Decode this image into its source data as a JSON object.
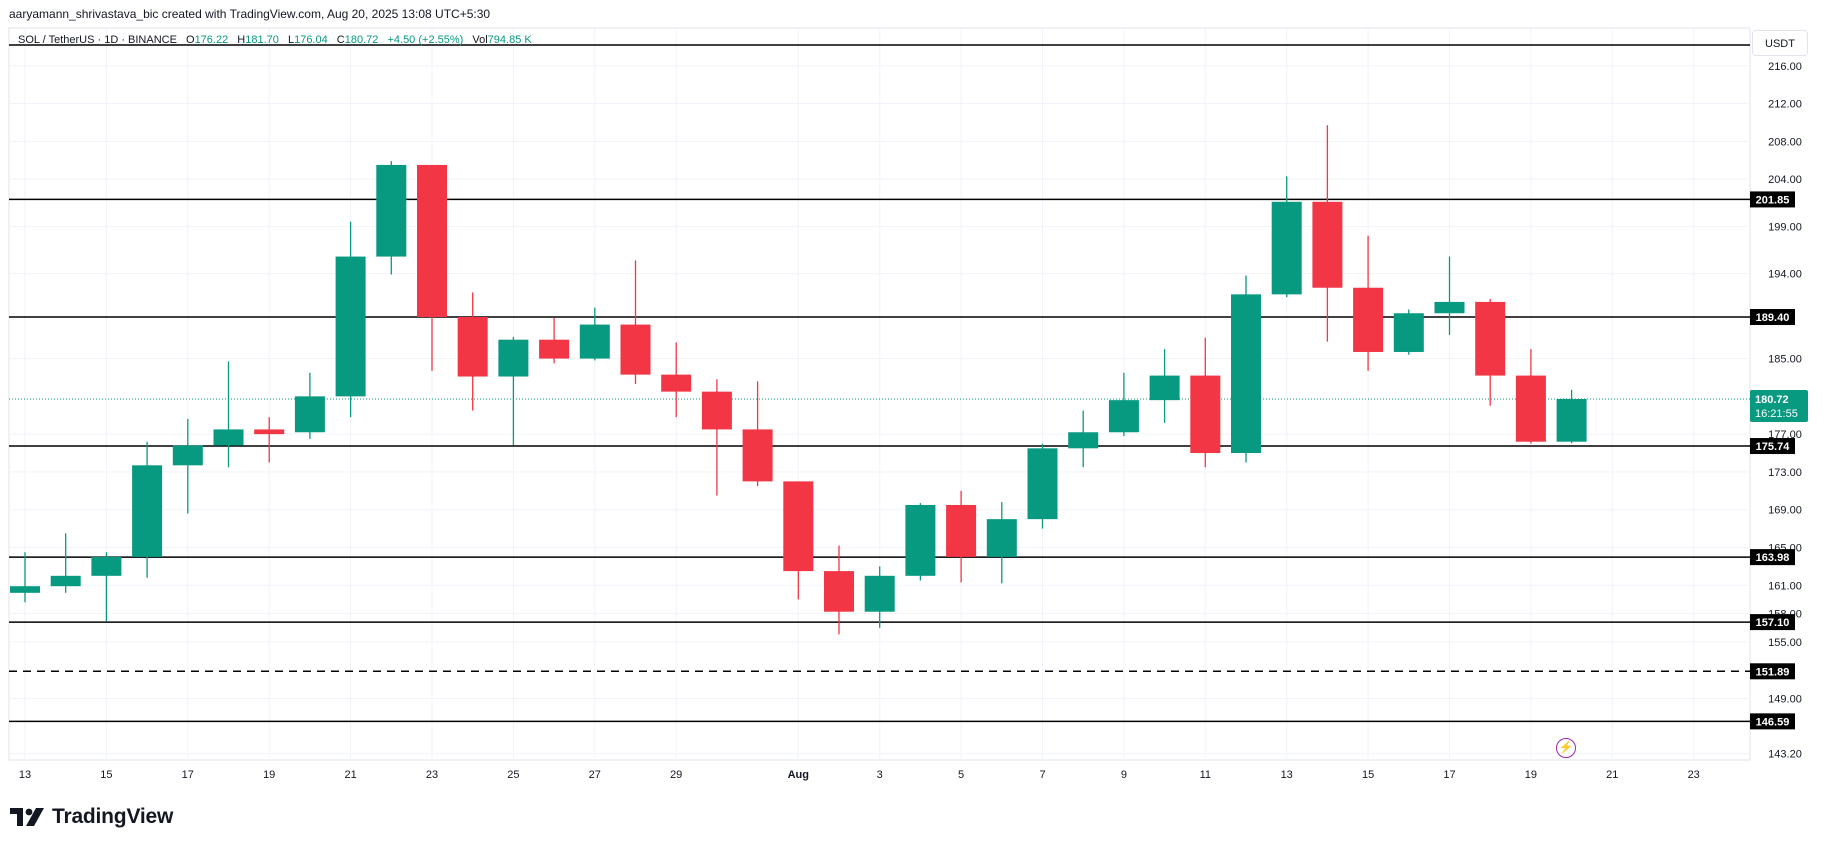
{
  "header": {
    "credit": "aaryamann_shrivastava_bic created with TradingView.com, Aug 20, 2025 13:08 UTC+5:30"
  },
  "legend": {
    "symbol": "SOL / TetherUS · 1D · BINANCE",
    "o_label": "O",
    "o_value": "176.22",
    "h_label": "H",
    "h_value": "181.70",
    "l_label": "L",
    "l_value": "176.04",
    "c_label": "C",
    "c_value": "180.72",
    "change": "+4.50 (+2.55%)",
    "vol_label": "Vol",
    "vol_value": "794.85 K"
  },
  "currency_label": "USDT",
  "brand": {
    "name": "TradingView"
  },
  "colors": {
    "up": "#089981",
    "down": "#f23645",
    "grid": "#f0f3fa",
    "level": "#000000",
    "last_price": "#089981",
    "axis_text": "#131722"
  },
  "chart_data": {
    "type": "candlestick",
    "symbol": "SOL / TetherUS",
    "interval": "1D",
    "exchange": "BINANCE",
    "y_axis": {
      "ticks": [
        "216.00",
        "212.00",
        "208.00",
        "204.00",
        "199.00",
        "194.00",
        "185.00",
        "177.00",
        "173.00",
        "169.00",
        "165.00",
        "161.00",
        "158.00",
        "155.00",
        "149.00",
        "143.20"
      ],
      "ylim": [
        142.5,
        220
      ]
    },
    "x_axis": {
      "ticks": [
        {
          "label": "13",
          "day": 13
        },
        {
          "label": "15",
          "day": 15
        },
        {
          "label": "17",
          "day": 17
        },
        {
          "label": "19",
          "day": 19
        },
        {
          "label": "21",
          "day": 21
        },
        {
          "label": "23",
          "day": 23
        },
        {
          "label": "25",
          "day": 25
        },
        {
          "label": "27",
          "day": 27
        },
        {
          "label": "29",
          "day": 29
        },
        {
          "label": "Aug",
          "day": 32
        },
        {
          "label": "3",
          "day": 34
        },
        {
          "label": "5",
          "day": 36
        },
        {
          "label": "7",
          "day": 38
        },
        {
          "label": "9",
          "day": 40
        },
        {
          "label": "11",
          "day": 42
        },
        {
          "label": "13",
          "day": 44
        },
        {
          "label": "15",
          "day": 46
        },
        {
          "label": "17",
          "day": 48
        },
        {
          "label": "19",
          "day": 50
        },
        {
          "label": "21",
          "day": 52
        },
        {
          "label": "23",
          "day": 54
        }
      ]
    },
    "candles": [
      {
        "day": 13,
        "o": 160.2,
        "h": 164.5,
        "l": 159.2,
        "c": 160.9
      },
      {
        "day": 14,
        "o": 160.9,
        "h": 166.5,
        "l": 160.2,
        "c": 162.0
      },
      {
        "day": 15,
        "o": 162.0,
        "h": 164.5,
        "l": 157.2,
        "c": 164.0
      },
      {
        "day": 16,
        "o": 164.0,
        "h": 176.2,
        "l": 161.8,
        "c": 173.7
      },
      {
        "day": 17,
        "o": 173.7,
        "h": 178.6,
        "l": 168.6,
        "c": 175.8
      },
      {
        "day": 18,
        "o": 175.8,
        "h": 184.7,
        "l": 173.5,
        "c": 177.5
      },
      {
        "day": 19,
        "o": 177.5,
        "h": 178.8,
        "l": 174.0,
        "c": 177.0
      },
      {
        "day": 20,
        "o": 177.2,
        "h": 183.5,
        "l": 176.5,
        "c": 181.0
      },
      {
        "day": 21,
        "o": 181.0,
        "h": 199.5,
        "l": 178.8,
        "c": 195.8
      },
      {
        "day": 22,
        "o": 195.8,
        "h": 205.9,
        "l": 193.9,
        "c": 205.5
      },
      {
        "day": 23,
        "o": 205.5,
        "h": 205.5,
        "l": 183.7,
        "c": 189.4
      },
      {
        "day": 24,
        "o": 189.4,
        "h": 192.0,
        "l": 179.5,
        "c": 183.1
      },
      {
        "day": 25,
        "o": 183.1,
        "h": 187.3,
        "l": 175.8,
        "c": 187.0
      },
      {
        "day": 26,
        "o": 187.0,
        "h": 189.3,
        "l": 184.5,
        "c": 185.0
      },
      {
        "day": 27,
        "o": 185.0,
        "h": 190.4,
        "l": 184.8,
        "c": 188.6
      },
      {
        "day": 28,
        "o": 188.6,
        "h": 195.4,
        "l": 182.3,
        "c": 183.3
      },
      {
        "day": 29,
        "o": 183.3,
        "h": 186.7,
        "l": 178.8,
        "c": 181.5
      },
      {
        "day": 30,
        "o": 181.5,
        "h": 182.8,
        "l": 170.5,
        "c": 177.5
      },
      {
        "day": 31,
        "o": 177.5,
        "h": 182.6,
        "l": 171.5,
        "c": 172.0
      },
      {
        "day": 32,
        "o": 172.0,
        "h": 172.0,
        "l": 159.5,
        "c": 162.5
      },
      {
        "day": 33,
        "o": 162.5,
        "h": 165.2,
        "l": 155.8,
        "c": 158.2
      },
      {
        "day": 34,
        "o": 158.2,
        "h": 163.0,
        "l": 156.5,
        "c": 162.0
      },
      {
        "day": 35,
        "o": 162.0,
        "h": 169.7,
        "l": 161.5,
        "c": 169.5
      },
      {
        "day": 36,
        "o": 169.5,
        "h": 171.0,
        "l": 161.3,
        "c": 164.0
      },
      {
        "day": 37,
        "o": 164.0,
        "h": 169.8,
        "l": 161.2,
        "c": 168.0
      },
      {
        "day": 38,
        "o": 168.0,
        "h": 176.0,
        "l": 167.0,
        "c": 175.5
      },
      {
        "day": 39,
        "o": 175.5,
        "h": 179.5,
        "l": 173.5,
        "c": 177.2
      },
      {
        "day": 40,
        "o": 177.2,
        "h": 183.5,
        "l": 176.8,
        "c": 180.6
      },
      {
        "day": 41,
        "o": 180.6,
        "h": 186.0,
        "l": 178.2,
        "c": 183.2
      },
      {
        "day": 42,
        "o": 183.2,
        "h": 187.2,
        "l": 173.5,
        "c": 175.0
      },
      {
        "day": 43,
        "o": 175.0,
        "h": 193.8,
        "l": 174.0,
        "c": 191.8
      },
      {
        "day": 44,
        "o": 191.8,
        "h": 204.3,
        "l": 191.5,
        "c": 201.6
      },
      {
        "day": 45,
        "o": 201.6,
        "h": 209.7,
        "l": 186.8,
        "c": 192.5
      },
      {
        "day": 46,
        "o": 192.5,
        "h": 198.0,
        "l": 183.7,
        "c": 185.7
      },
      {
        "day": 47,
        "o": 185.7,
        "h": 190.2,
        "l": 185.4,
        "c": 189.8
      },
      {
        "day": 48,
        "o": 189.8,
        "h": 195.8,
        "l": 187.5,
        "c": 191.0
      },
      {
        "day": 49,
        "o": 191.0,
        "h": 191.3,
        "l": 180.0,
        "c": 183.2
      },
      {
        "day": 50,
        "o": 183.2,
        "h": 186.0,
        "l": 176.0,
        "c": 176.2
      },
      {
        "day": 51,
        "o": 176.2,
        "h": 181.7,
        "l": 176.04,
        "c": 180.72
      }
    ],
    "levels": [
      {
        "price": 218.2,
        "label": "",
        "style": "solid"
      },
      {
        "price": 201.85,
        "label": "201.85",
        "style": "solid"
      },
      {
        "price": 189.4,
        "label": "189.40",
        "style": "solid"
      },
      {
        "price": 175.74,
        "label": "175.74",
        "style": "solid"
      },
      {
        "price": 163.98,
        "label": "163.98",
        "style": "solid"
      },
      {
        "price": 157.1,
        "label": "157.10",
        "style": "solid"
      },
      {
        "price": 151.89,
        "label": "151.89",
        "style": "dashed"
      },
      {
        "price": 146.59,
        "label": "146.59",
        "style": "solid"
      }
    ],
    "last_price": {
      "price": 180.72,
      "label": "180.72",
      "countdown": "16:21:55"
    }
  }
}
